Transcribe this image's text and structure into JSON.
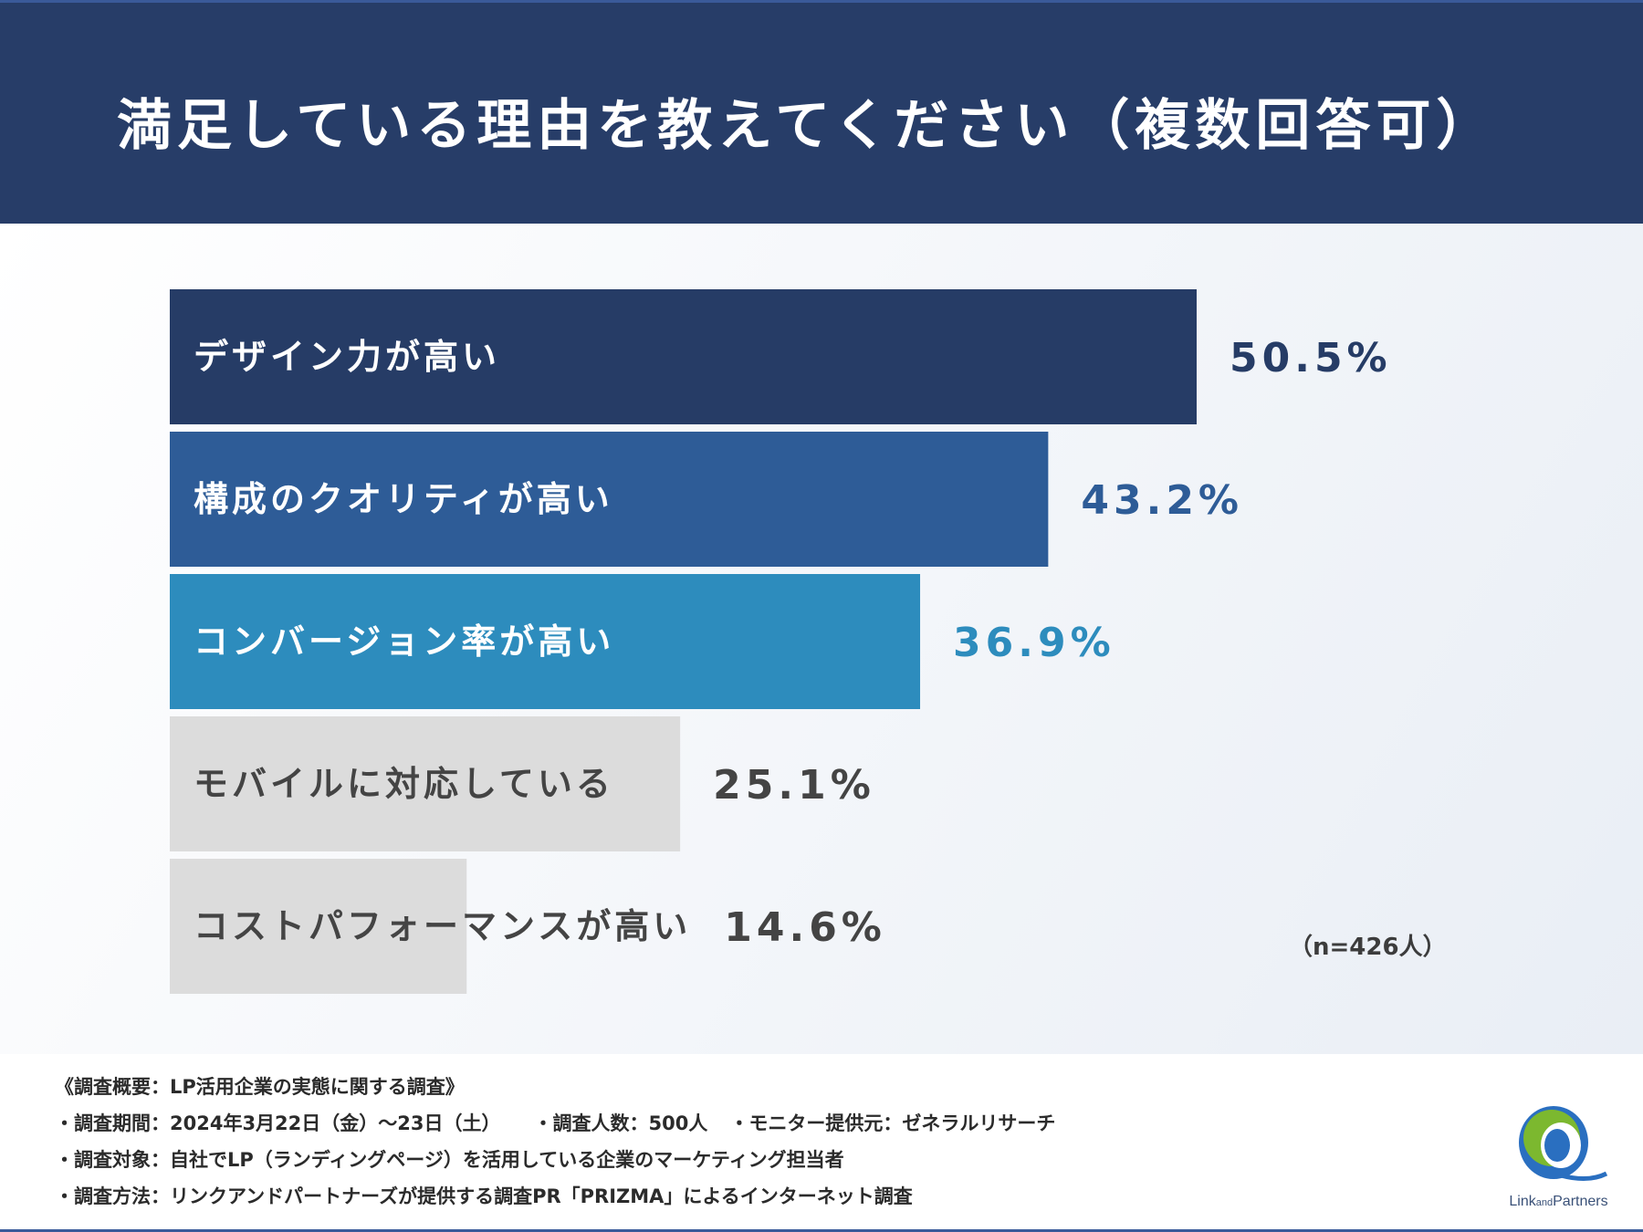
{
  "header": {
    "title": "満足している理由を教えてください（複数回答可）"
  },
  "chart_data": {
    "type": "bar",
    "orientation": "horizontal",
    "title": "満足している理由を教えてください（複数回答可）",
    "categories": [
      "デザイン力が高い",
      "構成のクオリティが高い",
      "コンバージョン率が高い",
      "モバイルに対応している",
      "コストパフォーマンスが高い"
    ],
    "values": [
      50.5,
      43.2,
      36.9,
      25.1,
      14.6
    ],
    "value_labels": [
      "50.5%",
      "43.2%",
      "36.9%",
      "25.1%",
      "14.6%"
    ],
    "unit": "%",
    "xlim": [
      0,
      50.5
    ],
    "bar_colors": [
      "#263c66",
      "#2e5c97",
      "#2d8cbd",
      "#dcdcdc",
      "#dcdcdc"
    ],
    "label_colors": [
      "#ffffff",
      "#ffffff",
      "#ffffff",
      "#444444",
      "#444444"
    ],
    "value_colors": [
      "#263c66",
      "#2e5c97",
      "#2d8cbd",
      "#444444",
      "#444444"
    ],
    "sample_size": "（n=426人）"
  },
  "footer": {
    "summary": "《調査概要：LP活用企業の実態に関する調査》",
    "period": "・調査期間：2024年3月22日（金）〜23日（土）",
    "respondents": "・調査人数：500人",
    "monitor": "・モニター提供元：ゼネラルリサーチ",
    "target": "・調査対象：自社でLP（ランディングページ）を活用している企業のマーケティング担当者",
    "method": "・調査方法：リンクアンドパートナーズが提供する調査PR「PRIZMA」によるインターネット調査"
  },
  "logo": {
    "text": "Link and Partners",
    "colors": {
      "green": "#7cb82f",
      "blue": "#2a6fc0"
    }
  }
}
